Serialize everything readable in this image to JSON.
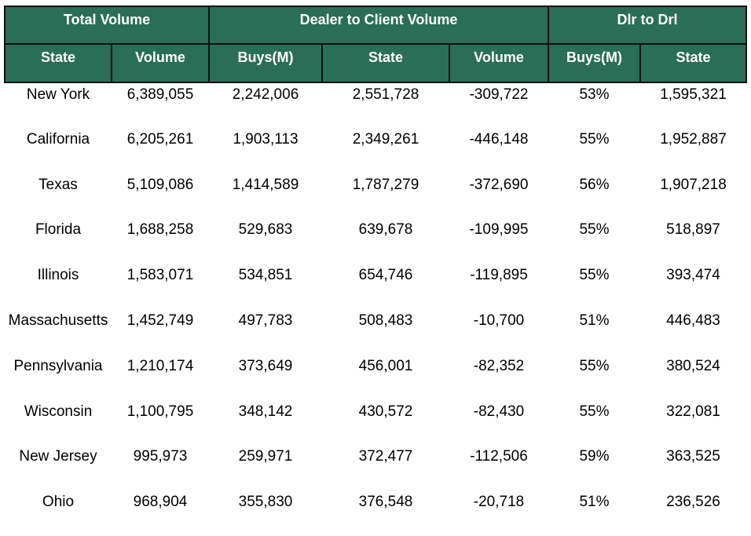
{
  "chart_data": {
    "type": "table",
    "group_headers": [
      {
        "label": "Total Volume",
        "span": 2
      },
      {
        "label": "Dealer to Client Volume",
        "span": 3
      },
      {
        "label": "Dlr to Drl",
        "span": 2
      }
    ],
    "columns": [
      "State",
      "Volume",
      "Buys(M)",
      "State",
      "Volume",
      "Buys(M)",
      "State"
    ],
    "rows": [
      [
        "New York",
        "6,389,055",
        "2,242,006",
        "2,551,728",
        "-309,722",
        "53%",
        "1,595,321"
      ],
      [
        "California",
        "6,205,261",
        "1,903,113",
        "2,349,261",
        "-446,148",
        "55%",
        "1,952,887"
      ],
      [
        "Texas",
        "5,109,086",
        "1,414,589",
        "1,787,279",
        "-372,690",
        "56%",
        "1,907,218"
      ],
      [
        "Florida",
        "1,688,258",
        "529,683",
        "639,678",
        "-109,995",
        "55%",
        "518,897"
      ],
      [
        "Illinois",
        "1,583,071",
        "534,851",
        "654,746",
        "-119,895",
        "55%",
        "393,474"
      ],
      [
        "Massachusetts",
        "1,452,749",
        "497,783",
        "508,483",
        "-10,700",
        "51%",
        "446,483"
      ],
      [
        "Pennsylvania",
        "1,210,174",
        "373,649",
        "456,001",
        "-82,352",
        "55%",
        "380,524"
      ],
      [
        "Wisconsin",
        "1,100,795",
        "348,142",
        "430,572",
        "-82,430",
        "55%",
        "322,081"
      ],
      [
        "New Jersey",
        "995,973",
        "259,971",
        "372,477",
        "-112,506",
        "59%",
        "363,525"
      ],
      [
        "Ohio",
        "968,904",
        "355,830",
        "376,548",
        "-20,718",
        "51%",
        "236,526"
      ]
    ]
  },
  "colors": {
    "header_bg": "#2a6e57",
    "header_text": "#ffffff",
    "border": "#111111"
  }
}
